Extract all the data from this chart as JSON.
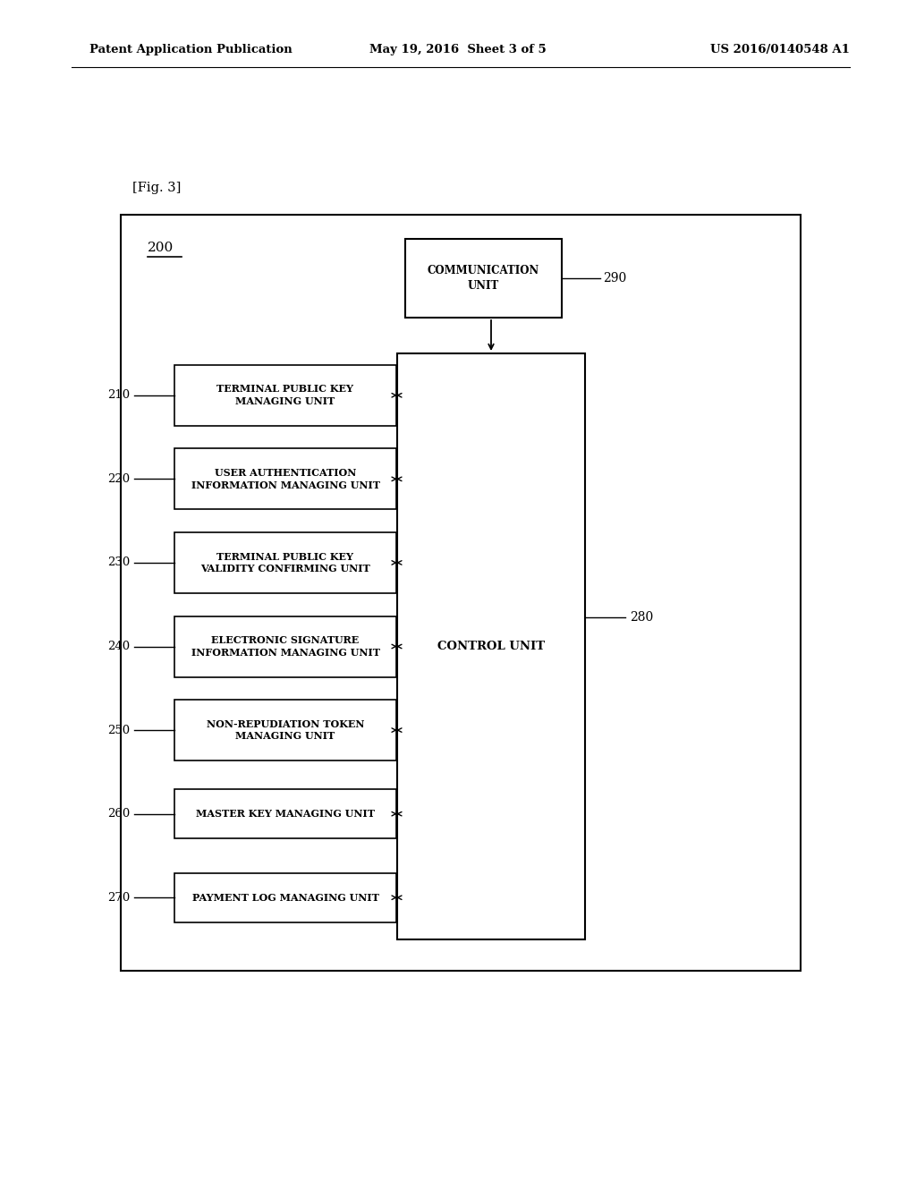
{
  "background_color": "#ffffff",
  "header_left": "Patent Application Publication",
  "header_mid": "May 19, 2016  Sheet 3 of 5",
  "header_right": "US 2016/0140548 A1",
  "fig_label": "[Fig. 3]",
  "outer_box_label": "200",
  "comm_unit_label": "COMMUNICATION\nUNIT",
  "comm_unit_ref": "290",
  "control_unit_label": "CONTROL UNIT",
  "control_unit_ref": "280",
  "units": [
    {
      "ref": "210",
      "label": "TERMINAL PUBLIC KEY\nMANAGING UNIT"
    },
    {
      "ref": "220",
      "label": "USER AUTHENTICATION\nINFORMATION MANAGING UNIT"
    },
    {
      "ref": "230",
      "label": "TERMINAL PUBLIC KEY\nVALIDITY CONFIRMING UNIT"
    },
    {
      "ref": "240",
      "label": "ELECTRONIC SIGNATURE\nINFORMATION MANAGING UNIT"
    },
    {
      "ref": "250",
      "label": "NON-REPUDIATION TOKEN\nMANAGING UNIT"
    },
    {
      "ref": "260",
      "label": "MASTER KEY MANAGING UNIT"
    },
    {
      "ref": "270",
      "label": "PAYMENT LOG MANAGING UNIT"
    }
  ]
}
